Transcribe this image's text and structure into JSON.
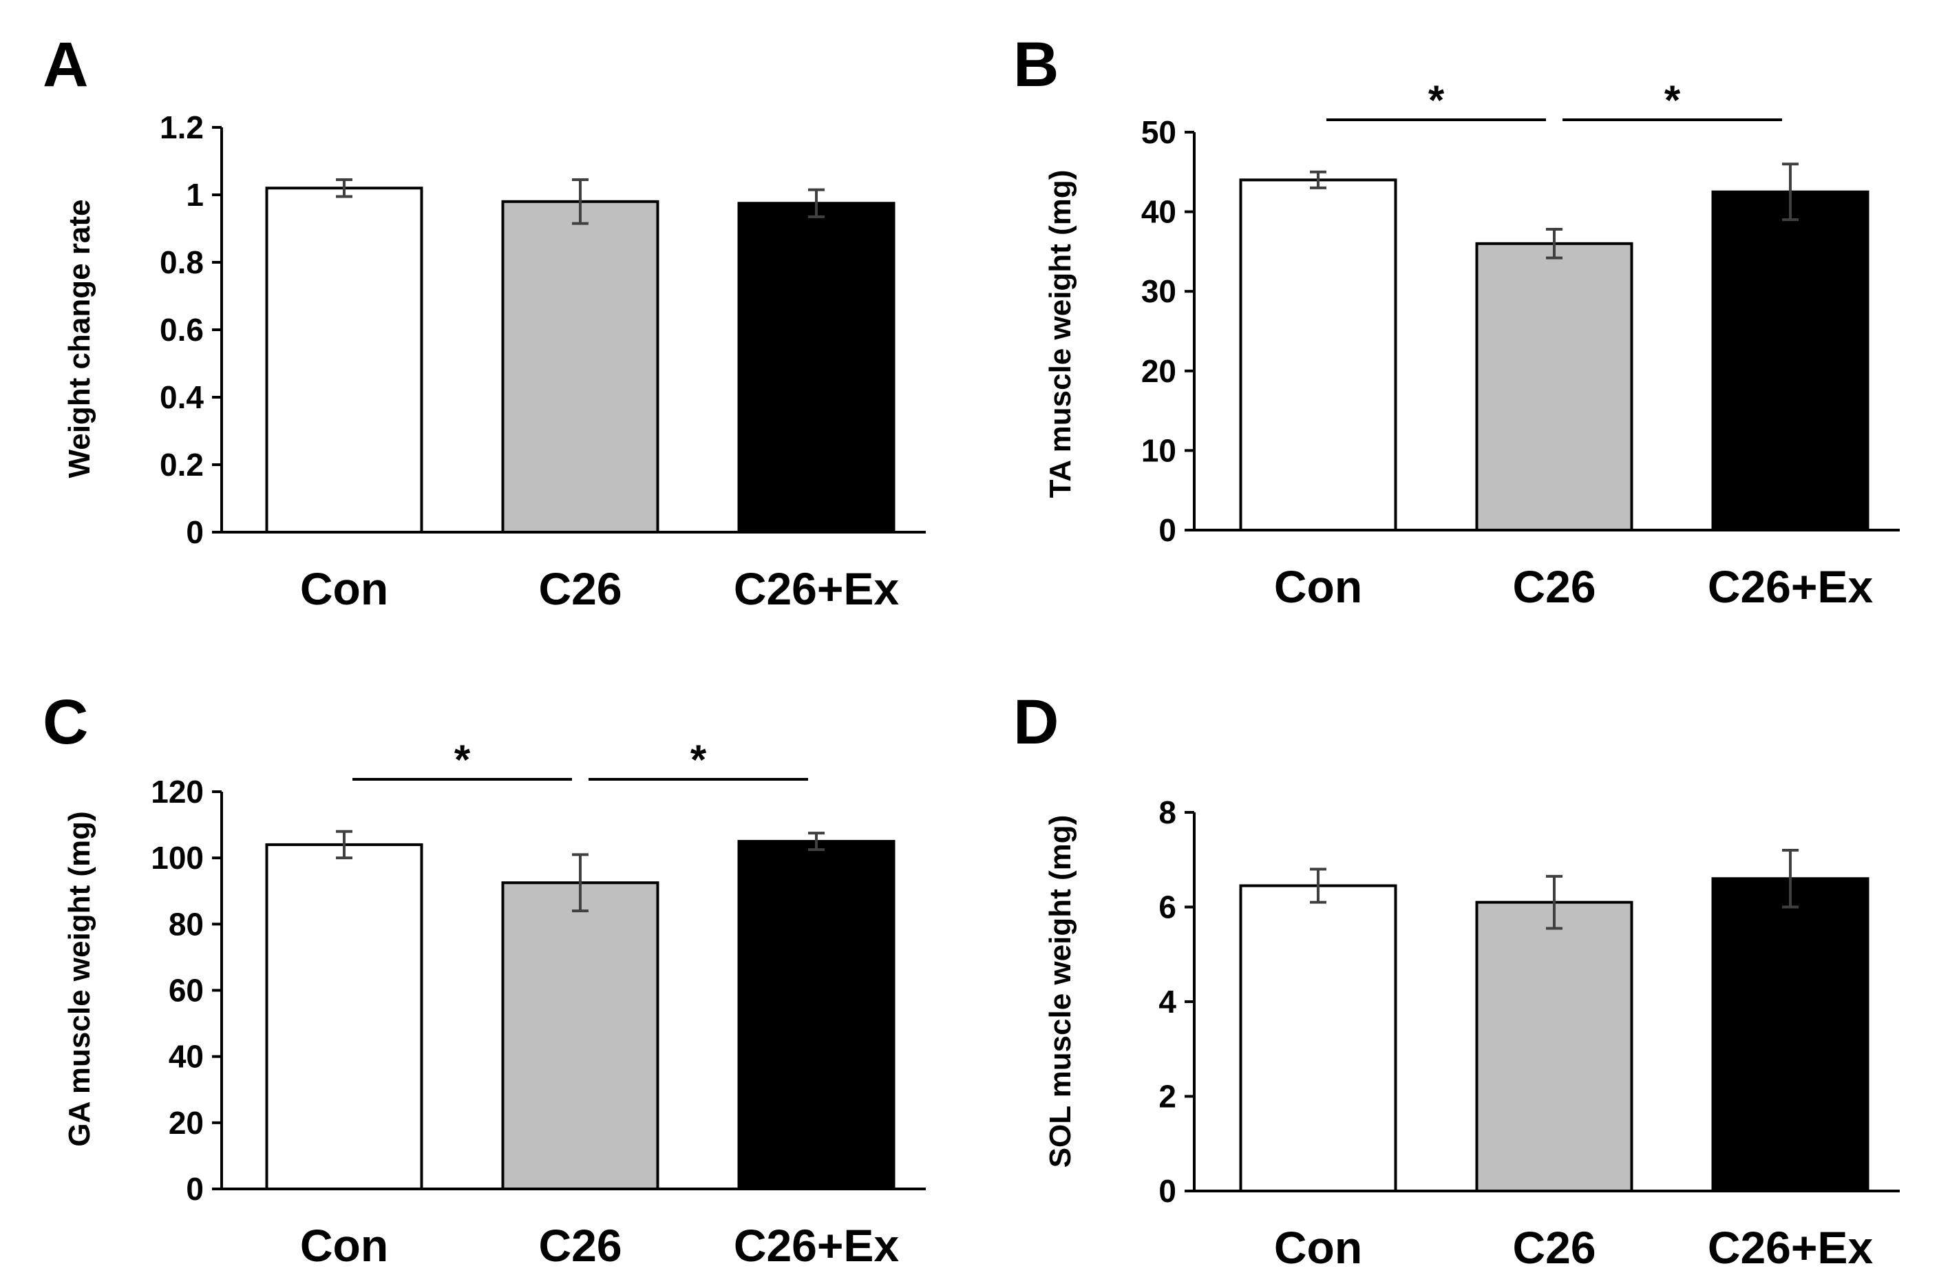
{
  "figure": {
    "bar_colors": [
      "#ffffff",
      "#bfbfbf",
      "#000000"
    ],
    "errorbar_color": "#404040",
    "line_color": "#000000"
  },
  "chart_data": [
    {
      "panel": "A",
      "type": "bar",
      "categories": [
        "Con",
        "C26",
        "C26+Ex"
      ],
      "values": [
        1.02,
        0.98,
        0.975
      ],
      "errors": [
        0.025,
        0.065,
        0.04
      ],
      "ylabel": "Weight change rate",
      "ylim": [
        0,
        1.2
      ],
      "yticks": [
        "0",
        "0.2",
        "0.4",
        "0.6",
        "0.8",
        "1",
        "1.2"
      ],
      "significance": []
    },
    {
      "panel": "B",
      "type": "bar",
      "categories": [
        "Con",
        "C26",
        "C26+Ex"
      ],
      "values": [
        44,
        36,
        42.5
      ],
      "errors": [
        1,
        1.8,
        3.5
      ],
      "ylabel": "TA muscle weight (mg)",
      "ylim": [
        0,
        50
      ],
      "yticks": [
        "0",
        "10",
        "20",
        "30",
        "40",
        "50"
      ],
      "significance": [
        {
          "from": 0,
          "to": 1,
          "label": "*"
        },
        {
          "from": 1,
          "to": 2,
          "label": "*"
        }
      ]
    },
    {
      "panel": "C",
      "type": "bar",
      "categories": [
        "Con",
        "C26",
        "C26+Ex"
      ],
      "values": [
        104,
        92.5,
        105
      ],
      "errors": [
        4,
        8.5,
        2.5
      ],
      "ylabel": "GA muscle weight (mg)",
      "ylim": [
        0,
        120
      ],
      "yticks": [
        "0",
        "20",
        "40",
        "60",
        "80",
        "100",
        "120"
      ],
      "significance": [
        {
          "from": 0,
          "to": 1,
          "label": "*"
        },
        {
          "from": 1,
          "to": 2,
          "label": "*"
        }
      ]
    },
    {
      "panel": "D",
      "type": "bar",
      "categories": [
        "Con",
        "C26",
        "C26+Ex"
      ],
      "values": [
        6.45,
        6.1,
        6.6
      ],
      "errors": [
        0.35,
        0.55,
        0.6
      ],
      "ylabel": "SOL muscle weight (mg)",
      "ylim": [
        0,
        8
      ],
      "yticks": [
        "0",
        "2",
        "4",
        "6",
        "8"
      ],
      "significance": []
    }
  ]
}
